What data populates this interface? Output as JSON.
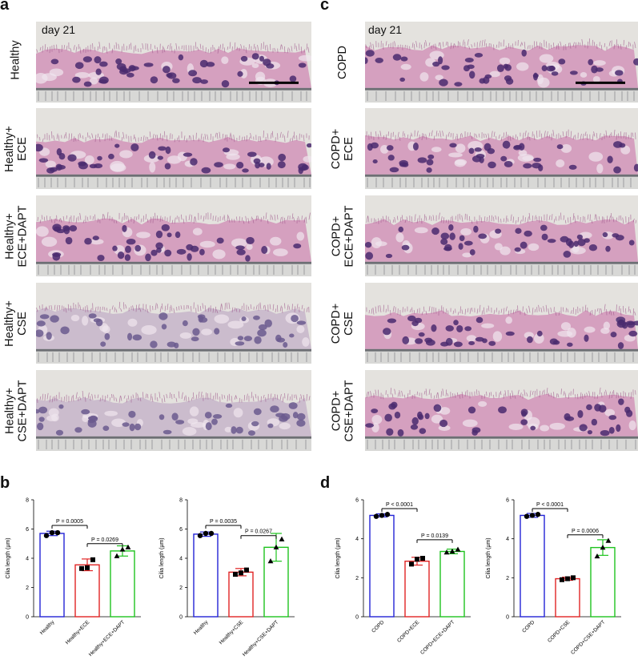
{
  "panels": {
    "a": {
      "letter": "a",
      "day_label": "day 21",
      "rows": [
        "Healthy",
        "Healthy+\nECE",
        "Healthy+\nECE+DAPT",
        "Healthy+\nCSE",
        "Healthy+\nCSE+DAPT"
      ]
    },
    "c": {
      "letter": "c",
      "day_label": "day 21",
      "rows": [
        "COPD",
        "COPD+\nECE",
        "COPD+\nECE+DAPT",
        "COPD+\nCSE",
        "COPD+\nCSE+DAPT"
      ]
    },
    "b": {
      "letter": "b"
    },
    "d": {
      "letter": "d"
    }
  },
  "colors": {
    "blue": "#2323d6",
    "red": "#e02424",
    "green": "#1ec31e",
    "stain_pink": "#c86aa6",
    "nucleus": "#4a2a6e"
  },
  "chart_data": [
    {
      "panel": "b",
      "type": "bar",
      "ylabel": "Cilia length (µm)",
      "ylim": [
        0,
        8
      ],
      "yticks": [
        0,
        2,
        4,
        6,
        8
      ],
      "categories": [
        "Healthy",
        "Healthy+ECE",
        "Healthy+ECE+DAPT"
      ],
      "values": [
        5.7,
        3.55,
        4.5
      ],
      "errors": [
        0.15,
        0.4,
        0.35
      ],
      "points": [
        [
          5.55,
          5.75,
          5.75
        ],
        [
          3.3,
          3.35,
          3.9
        ],
        [
          4.15,
          4.6,
          4.75
        ]
      ],
      "markers": [
        "circle",
        "square",
        "triangle"
      ],
      "comparisons": [
        {
          "from": 0,
          "to": 1,
          "label": "P = 0.0005",
          "y": 6.25
        },
        {
          "from": 1,
          "to": 2,
          "label": "P = 0.0269",
          "y": 5.0
        }
      ]
    },
    {
      "panel": "b",
      "type": "bar",
      "ylabel": "Cilia length (µm)",
      "ylim": [
        0,
        8
      ],
      "yticks": [
        0,
        2,
        4,
        6,
        8
      ],
      "categories": [
        "Healthy",
        "Healthy+CSE",
        "Healthy+CSE+DAPT"
      ],
      "values": [
        5.65,
        3.05,
        4.75
      ],
      "errors": [
        0.15,
        0.25,
        0.95
      ],
      "points": [
        [
          5.55,
          5.7,
          5.7
        ],
        [
          2.9,
          3.0,
          3.2
        ],
        [
          3.8,
          4.75,
          5.3
        ]
      ],
      "markers": [
        "circle",
        "square",
        "triangle"
      ],
      "comparisons": [
        {
          "from": 0,
          "to": 1,
          "label": "P = 0.0035",
          "y": 6.25
        },
        {
          "from": 1,
          "to": 2,
          "label": "P = 0.0267",
          "y": 5.55
        }
      ]
    },
    {
      "panel": "d",
      "type": "bar",
      "ylabel": "Cilia length (µm)",
      "ylim": [
        0,
        6
      ],
      "yticks": [
        0,
        2,
        4,
        6
      ],
      "categories": [
        "COPD",
        "COPD+ECE",
        "COPD+ECE+DAPT"
      ],
      "values": [
        5.2,
        2.85,
        3.35
      ],
      "errors": [
        0.08,
        0.2,
        0.12
      ],
      "points": [
        [
          5.15,
          5.2,
          5.25
        ],
        [
          2.7,
          2.95,
          3.0
        ],
        [
          3.3,
          3.35,
          3.45
        ]
      ],
      "markers": [
        "circle",
        "square",
        "triangle"
      ],
      "comparisons": [
        {
          "from": 0,
          "to": 1,
          "label": "P < 0.0001",
          "y": 5.55
        },
        {
          "from": 1,
          "to": 2,
          "label": "P = 0.0139",
          "y": 3.95
        }
      ]
    },
    {
      "panel": "d",
      "type": "bar",
      "ylabel": "Cilia length (µm)",
      "ylim": [
        0,
        6
      ],
      "yticks": [
        0,
        2,
        4,
        6
      ],
      "categories": [
        "COPD",
        "COPD+CSE",
        "COPD+CSE+DAPT"
      ],
      "values": [
        5.2,
        1.95,
        3.55
      ],
      "errors": [
        0.1,
        0.08,
        0.4
      ],
      "points": [
        [
          5.15,
          5.2,
          5.25
        ],
        [
          1.9,
          1.95,
          2.0
        ],
        [
          3.1,
          3.55,
          3.9
        ]
      ],
      "markers": [
        "circle",
        "square",
        "triangle"
      ],
      "comparisons": [
        {
          "from": 0,
          "to": 1,
          "label": "P < 0.0001",
          "y": 5.55
        },
        {
          "from": 1,
          "to": 2,
          "label": "P = 0.0006",
          "y": 4.2
        }
      ]
    }
  ]
}
